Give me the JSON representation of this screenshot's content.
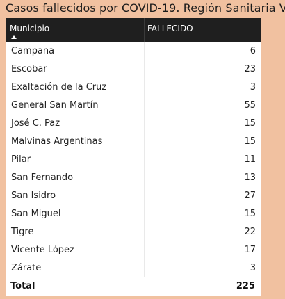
{
  "title": "Casos fallecidos por COVID-19. Región Sanitaria V",
  "table": {
    "headers": {
      "municipio": "Municipio",
      "fallecido": "FALLECIDO"
    },
    "sort_icon": "sort-ascending-icon",
    "rows": [
      {
        "name": "Campana",
        "value": "6"
      },
      {
        "name": "Escobar",
        "value": "23"
      },
      {
        "name": "Exaltación de la Cruz",
        "value": "3"
      },
      {
        "name": "General San Martín",
        "value": "55"
      },
      {
        "name": "José C. Paz",
        "value": "15"
      },
      {
        "name": "Malvinas Argentinas",
        "value": "15"
      },
      {
        "name": "Pilar",
        "value": "11"
      },
      {
        "name": "San Fernando",
        "value": "13"
      },
      {
        "name": "San Isidro",
        "value": "27"
      },
      {
        "name": "San Miguel",
        "value": "15"
      },
      {
        "name": "Tigre",
        "value": "22"
      },
      {
        "name": "Vicente López",
        "value": "17"
      },
      {
        "name": "Zárate",
        "value": "3"
      }
    ],
    "total": {
      "label": "Total",
      "value": "225"
    }
  },
  "colors": {
    "background": "#f1c1a0",
    "header": "#1f1f1f",
    "total_border": "#2f78c4"
  }
}
